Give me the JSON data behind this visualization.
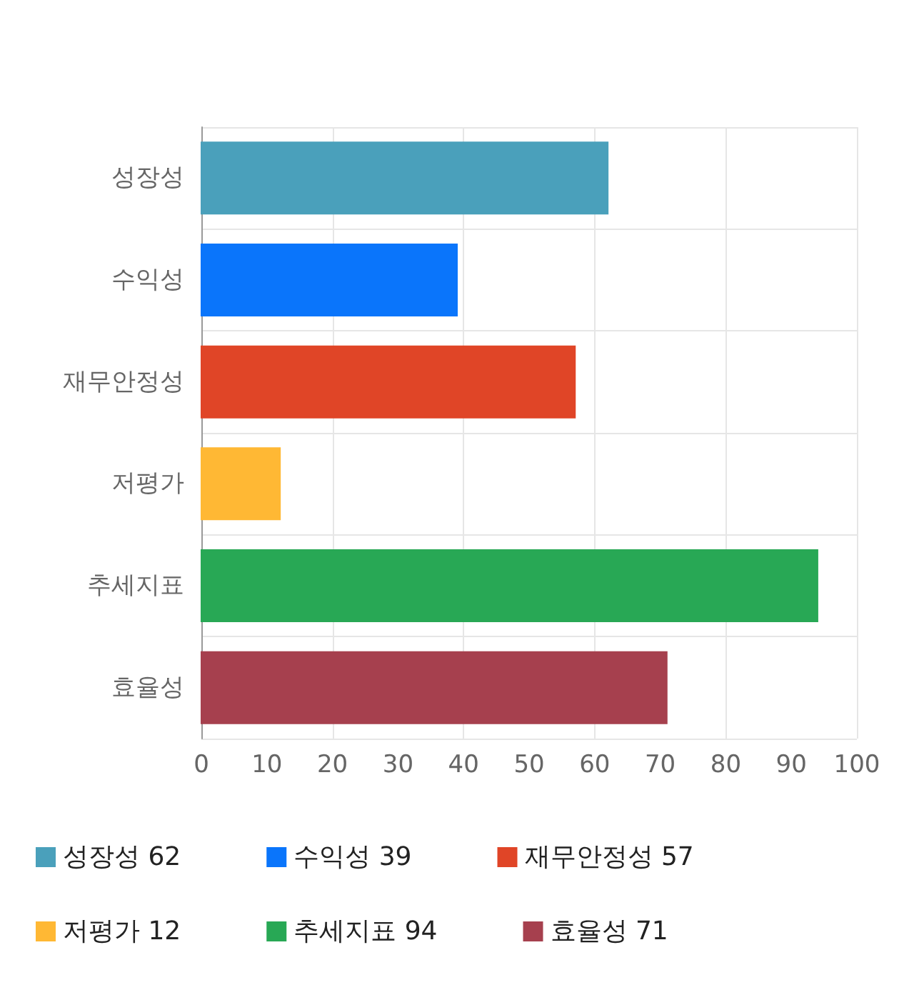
{
  "chart_data": {
    "type": "bar",
    "orientation": "horizontal",
    "stacked": true,
    "categories": [
      "성장성",
      "수익성",
      "재무안정성",
      "저평가",
      "추세지표",
      "효율성"
    ],
    "series": [
      {
        "name": "성장성 62",
        "color": "#4aa0bb",
        "values": [
          62,
          null,
          null,
          null,
          null,
          null
        ]
      },
      {
        "name": "수익성 39",
        "color": "#0a75fb",
        "values": [
          null,
          39,
          null,
          null,
          null,
          null
        ]
      },
      {
        "name": "재무안정성 57",
        "color": "#e04527",
        "values": [
          null,
          null,
          57,
          null,
          null,
          null
        ]
      },
      {
        "name": "저평가 12",
        "color": "#ffb834",
        "values": [
          null,
          null,
          null,
          12,
          null,
          null
        ]
      },
      {
        "name": "추세지표 94",
        "color": "#28a855",
        "values": [
          null,
          null,
          null,
          null,
          94,
          null
        ]
      },
      {
        "name": "효율성 71",
        "color": "#a6404e",
        "values": [
          null,
          null,
          null,
          null,
          null,
          71
        ]
      }
    ],
    "xlim": [
      0,
      100
    ],
    "xticks": [
      0,
      10,
      20,
      30,
      40,
      50,
      60,
      70,
      80,
      90,
      100
    ],
    "grid": true,
    "legend": "bottom"
  }
}
